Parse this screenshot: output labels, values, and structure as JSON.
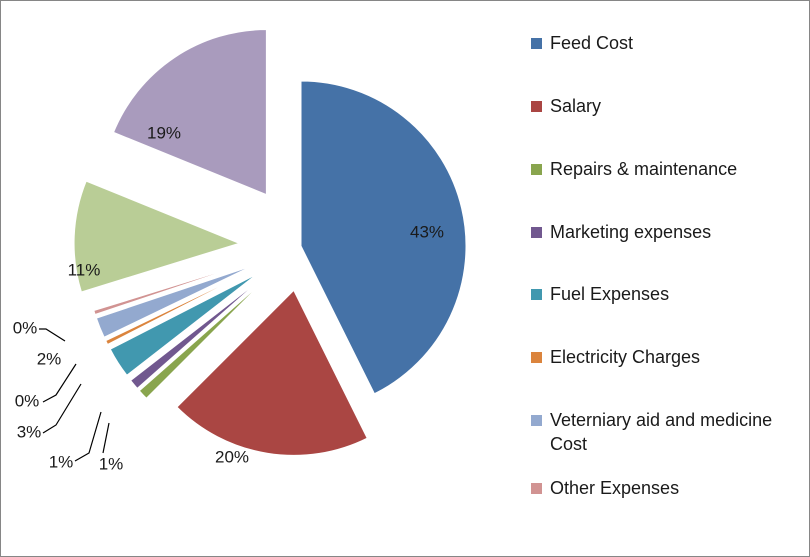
{
  "chart_data": {
    "type": "pie",
    "exploded": true,
    "legend_position": "right",
    "slices": [
      {
        "label": "Feed Cost",
        "value": 43,
        "data_label": "43%",
        "color": "#4572A7"
      },
      {
        "label": "Salary",
        "value": 20,
        "data_label": "20%",
        "color": "#AA4643"
      },
      {
        "label": "Repairs & maintenance",
        "value": 1,
        "data_label": "1%",
        "color": "#89A54E"
      },
      {
        "label": "Marketing expenses",
        "value": 1,
        "data_label": "1%",
        "color": "#71588F"
      },
      {
        "label": "Fuel Expenses",
        "value": 3,
        "data_label": "3%",
        "color": "#4198AF"
      },
      {
        "label": "Electricity Charges",
        "value": 0.4,
        "data_label": "0%",
        "color": "#DB843D"
      },
      {
        "label": "Veterniary aid and medicine Cost",
        "value": 2,
        "data_label": "2%",
        "color": "#93A9CF"
      },
      {
        "label": "Other Expenses",
        "value": 0.4,
        "data_label": "0%",
        "color": "#D19392"
      },
      {
        "label": "",
        "value": 11,
        "data_label": "11%",
        "color": "#B9CD96"
      },
      {
        "label": "",
        "value": 19,
        "data_label": "19%",
        "color": "#A99BBD"
      }
    ]
  }
}
